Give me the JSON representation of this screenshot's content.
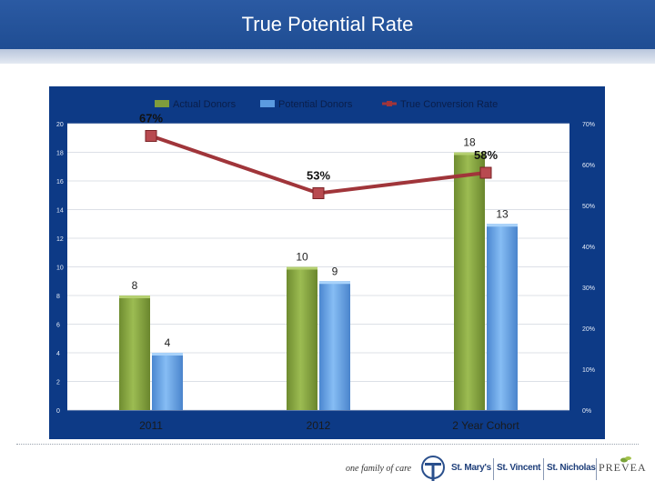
{
  "header": {
    "title": "True Potential Rate"
  },
  "footer": {
    "tagline": "one family of care",
    "brands": [
      "St. Mary's",
      "St. Vincent",
      "St. Nicholas"
    ],
    "prevea": "PREVEA"
  },
  "chart_data": {
    "type": "bar",
    "categories": [
      "2011",
      "2012",
      "2 Year Cohort"
    ],
    "series": [
      {
        "name": "Actual Donors",
        "type": "bar",
        "axis": "left",
        "color": "#7f9c3c",
        "values": [
          8,
          10,
          18
        ],
        "labels": [
          "8",
          "10",
          "18"
        ]
      },
      {
        "name": "Potential Donors",
        "type": "bar",
        "axis": "left",
        "color": "#5b9be0",
        "values": [
          4,
          9,
          13
        ],
        "labels": [
          "4",
          "9",
          "13"
        ]
      },
      {
        "name": "True Conversion Rate",
        "type": "line",
        "axis": "right",
        "color": "#a0353a",
        "values": [
          67,
          53,
          58
        ],
        "labels": [
          "67%",
          "53%",
          "58%"
        ]
      }
    ],
    "left_axis": {
      "ylim": [
        0,
        20
      ],
      "ticks": [
        "0",
        "2",
        "4",
        "6",
        "8",
        "10",
        "12",
        "14",
        "16",
        "18",
        "20"
      ]
    },
    "right_axis": {
      "ylim": [
        0,
        70
      ],
      "ticks": [
        "0%",
        "10%",
        "20%",
        "30%",
        "40%",
        "50%",
        "60%",
        "70%"
      ]
    },
    "legend": "top",
    "grid": true
  }
}
